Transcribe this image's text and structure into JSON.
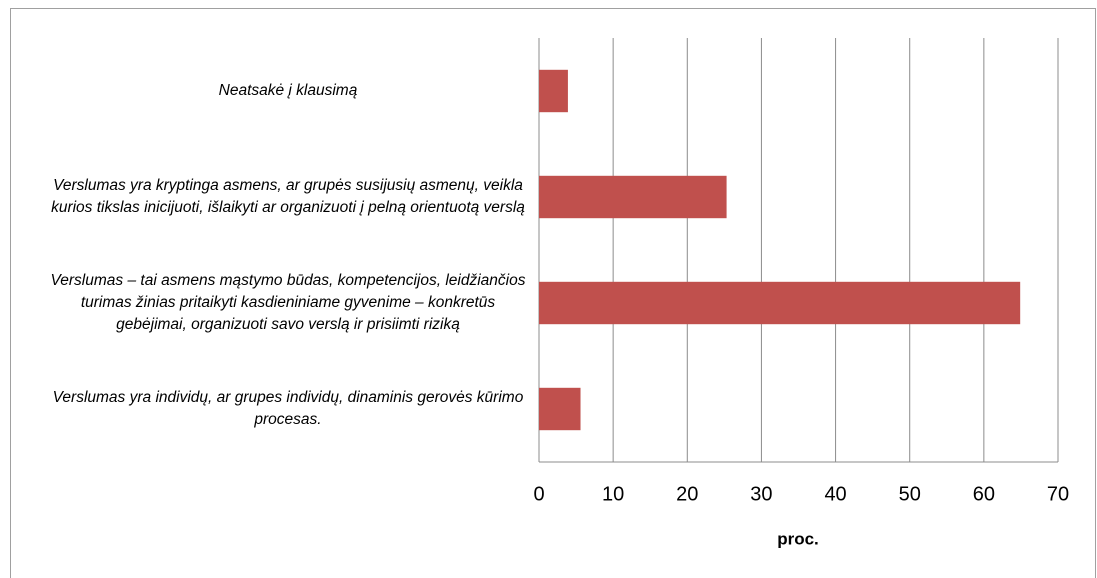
{
  "chart_data": {
    "type": "hbar",
    "categories": [
      "Neatsakė į klausimą",
      "Verslumas yra kryptinga asmens, ar grupės susijusių asmenų, veikla kurios tikslas inicijuoti, išlaikyti ar organizuoti į pelną orientuotą verslą",
      "Verslumas – tai asmens mąstymo būdas, kompetencijos, leidžiančios turimas žinias pritaikyti kasdieniniame gyvenime – konkretūs gebėjimai,  organizuoti savo verslą ir prisiimti riziką",
      "Verslumas yra individų, ar grupes individų, dinaminis gerovės kūrimo  procesas."
    ],
    "values": [
      3.9,
      25.3,
      64.9,
      5.6
    ],
    "color": "#c0504d",
    "xlabel": "proc.",
    "xlim": [
      0,
      70
    ],
    "xticks": [
      0,
      10,
      20,
      30,
      40,
      50,
      60,
      70
    ],
    "grid": true
  }
}
